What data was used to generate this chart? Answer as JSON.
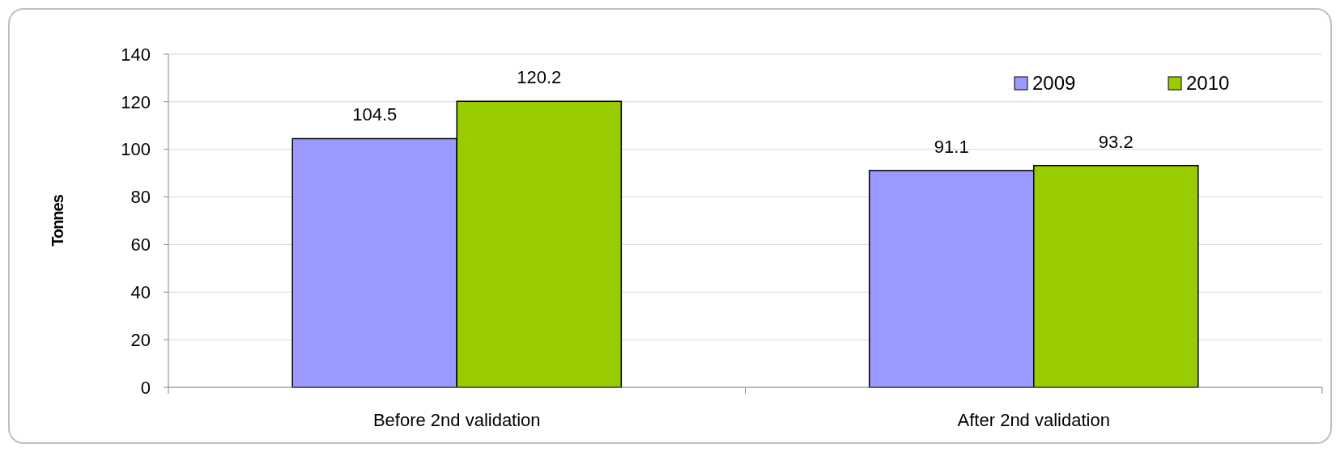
{
  "chart_data": {
    "type": "bar",
    "ylabel": "Tonnes",
    "categories": [
      "Before 2nd validation",
      "After 2nd validation"
    ],
    "series": [
      {
        "name": "2009",
        "color": "#9999ff",
        "values": [
          104.5,
          91.1
        ]
      },
      {
        "name": "2010",
        "color": "#99cc00",
        "values": [
          120.2,
          93.2
        ]
      }
    ],
    "ylim": [
      0,
      140
    ],
    "yticks": [
      0,
      20,
      40,
      60,
      80,
      100,
      120,
      140
    ],
    "grid": "y",
    "legend": "top right",
    "data_labels": true
  }
}
